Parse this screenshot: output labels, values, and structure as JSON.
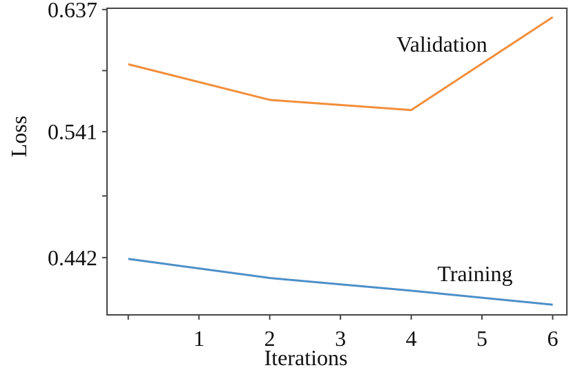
{
  "chart_data": {
    "type": "line",
    "xlabel": "Iterations",
    "ylabel": "Loss",
    "x": [
      0,
      2,
      4,
      6
    ],
    "x_ticks": [
      0,
      1,
      2,
      3,
      4,
      5,
      6
    ],
    "x_tick_labels": [
      "",
      "1",
      "2",
      "3",
      "4",
      "5",
      "6"
    ],
    "xlim": [
      -0.3,
      6.2
    ],
    "ylim": [
      0.397,
      0.638
    ],
    "y_ticks": [
      0.442,
      0.4905,
      0.541,
      0.589,
      0.637
    ],
    "y_tick_labels": [
      "0.442",
      "",
      "0.541",
      "",
      "0.637"
    ],
    "grid": false,
    "legend": "none",
    "series": [
      {
        "name": "Validation",
        "color": "#f28e3a",
        "values": [
          0.594,
          0.566,
          0.558,
          0.631
        ]
      },
      {
        "name": "Training",
        "color": "#4c8fc8",
        "values": [
          0.441,
          0.426,
          0.416,
          0.405
        ]
      }
    ]
  }
}
